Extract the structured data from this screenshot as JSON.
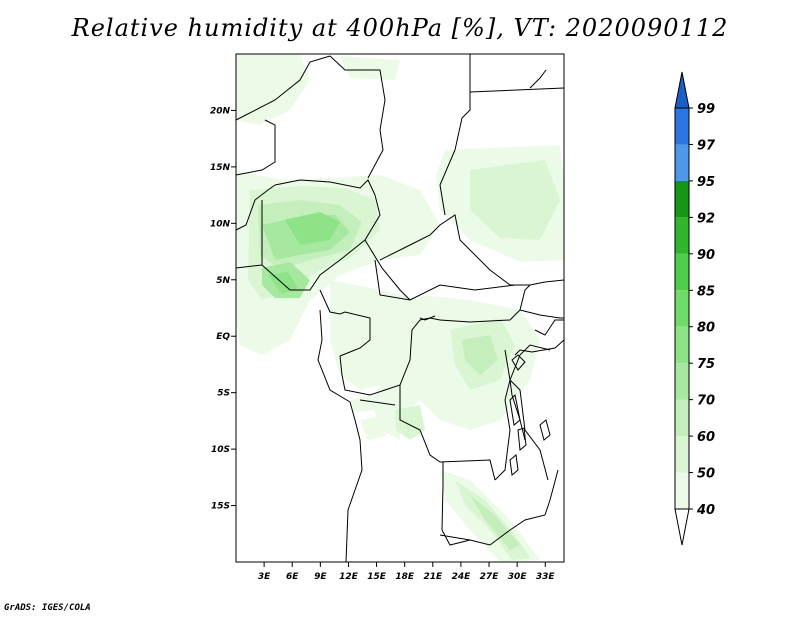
{
  "title": "Relative humidity at 400hPa [%], VT: 2020090112",
  "footer": "GrADS: IGES/COLA",
  "map": {
    "lon_range": [
      0,
      35
    ],
    "lat_range": [
      -20,
      25
    ],
    "x_ticks": [
      {
        "value": 3,
        "label": "3E"
      },
      {
        "value": 6,
        "label": "6E"
      },
      {
        "value": 9,
        "label": "9E"
      },
      {
        "value": 12,
        "label": "12E"
      },
      {
        "value": 15,
        "label": "15E"
      },
      {
        "value": 18,
        "label": "18E"
      },
      {
        "value": 21,
        "label": "21E"
      },
      {
        "value": 24,
        "label": "24E"
      },
      {
        "value": 27,
        "label": "27E"
      },
      {
        "value": 30,
        "label": "30E"
      },
      {
        "value": 33,
        "label": "33E"
      }
    ],
    "y_ticks": [
      {
        "value": 20,
        "label": "20N"
      },
      {
        "value": 15,
        "label": "15N"
      },
      {
        "value": 10,
        "label": "10N"
      },
      {
        "value": 5,
        "label": "5N"
      },
      {
        "value": 0,
        "label": "EQ"
      },
      {
        "value": -5,
        "label": "5S"
      },
      {
        "value": -10,
        "label": "10S"
      },
      {
        "value": -15,
        "label": "15S"
      }
    ]
  },
  "colorbar": {
    "levels": [
      "40",
      "50",
      "60",
      "70",
      "75",
      "80",
      "85",
      "90",
      "92",
      "95",
      "97",
      "99"
    ],
    "colors": [
      "#ebfbe7",
      "#d9f5d2",
      "#c4efbc",
      "#a6e8a0",
      "#8ee288",
      "#6fdc6a",
      "#4fce4b",
      "#2fb62d",
      "#169615",
      "#4d98e8",
      "#2b76e2",
      "#1a5fc8"
    ],
    "under_color": "#ffffff",
    "over_color": "#1a5fc8"
  },
  "colors": {
    "coast": "#000000",
    "background": "#ffffff"
  }
}
